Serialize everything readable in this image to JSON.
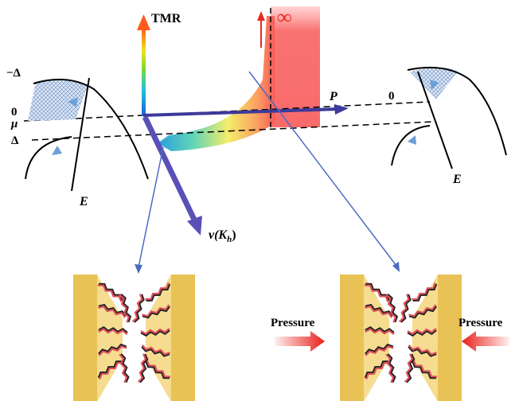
{
  "axes": {
    "tmr": "TMR",
    "infinity": "∞",
    "pressure_axis": "P",
    "velocity_axis": "v(K",
    "velocity_subscript": "h",
    "velocity_close": ")"
  },
  "left_band": {
    "minus_delta": "−Δ",
    "zero": "0",
    "mu": "μ",
    "delta": "Δ",
    "energy": "E"
  },
  "right_band": {
    "zero": "0",
    "energy": "E"
  },
  "pressure_labels": [
    "Pressure",
    "Pressure"
  ]
}
